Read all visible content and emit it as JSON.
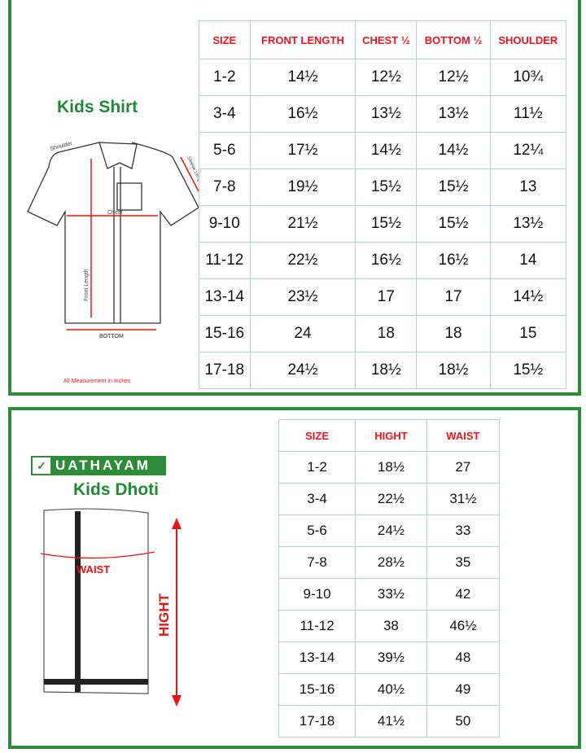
{
  "shirt": {
    "title": "Kids Shirt",
    "footnote": "All Measurement in Inches",
    "diagram_labels": {
      "shoulder": "Shoulder",
      "sleeve": "Sleeve Length",
      "chest": "Chest",
      "front": "Front Length",
      "bottom": "BOTTOM"
    },
    "headers": [
      "SIZE",
      "FRONT LENGTH",
      "CHEST ½",
      "BOTTOM ½",
      "SHOULDER"
    ],
    "rows": [
      [
        "1-2",
        "14½",
        "12½",
        "12½",
        "10¾"
      ],
      [
        "3-4",
        "16½",
        "13½",
        "13½",
        "11½"
      ],
      [
        "5-6",
        "17½",
        "14½",
        "14½",
        "12¼"
      ],
      [
        "7-8",
        "19½",
        "15½",
        "15½",
        "13"
      ],
      [
        "9-10",
        "21½",
        "15½",
        "15½",
        "13½"
      ],
      [
        "11-12",
        "22½",
        "16½",
        "16½",
        "14"
      ],
      [
        "13-14",
        "23½",
        "17",
        "17",
        "14½"
      ],
      [
        "15-16",
        "24",
        "18",
        "18",
        "15"
      ],
      [
        "17-18",
        "24½",
        "18½",
        "18½",
        "15½"
      ]
    ]
  },
  "dhoti": {
    "brand": "UATHAYAM",
    "title": "Kids Dhoti",
    "diagram_labels": {
      "waist": "WAIST",
      "hight": "HIGHT"
    },
    "headers": [
      "SIZE",
      "HIGHT",
      "WAIST"
    ],
    "rows": [
      [
        "1-2",
        "18½",
        "27"
      ],
      [
        "3-4",
        "22½",
        "31½"
      ],
      [
        "5-6",
        "24½",
        "33"
      ],
      [
        "7-8",
        "28½",
        "35"
      ],
      [
        "9-10",
        "33½",
        "42"
      ],
      [
        "11-12",
        "38",
        "46½"
      ],
      [
        "13-14",
        "39½",
        "48"
      ],
      [
        "15-16",
        "40½",
        "49"
      ],
      [
        "17-18",
        "41½",
        "50"
      ]
    ]
  },
  "colors": {
    "border": "#2e8b3a",
    "header_text": "#f0141e",
    "title": "#1e8a35",
    "grid": "#b9cfd2"
  }
}
